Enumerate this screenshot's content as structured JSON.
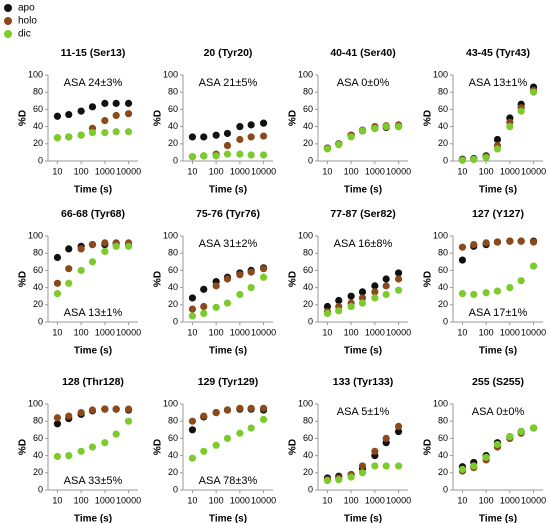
{
  "legend": [
    {
      "name": "apo",
      "color": "#111111"
    },
    {
      "name": "holo",
      "color": "#8b4a1c"
    },
    {
      "name": "dic",
      "color": "#7ccb2c"
    }
  ],
  "chart_data": [
    {
      "type": "scatter",
      "title": "11-15 (Ser13)",
      "annotation": "ASA 24±3%",
      "annotation_position": "top",
      "xlabel": "Time (s)",
      "ylabel": "%D",
      "xscale": "log",
      "x": [
        10,
        30,
        100,
        300,
        1000,
        3000,
        10000
      ],
      "xlim": [
        4,
        25000
      ],
      "xticks": [
        10,
        100,
        1000,
        10000
      ],
      "ylim": [
        0,
        100
      ],
      "yticks": [
        0,
        20,
        40,
        60,
        80,
        100
      ],
      "series": [
        {
          "values": [
            52,
            54,
            58,
            63,
            67,
            67,
            67
          ]
        },
        {
          "values": [
            27,
            28,
            30,
            38,
            47,
            53,
            55
          ]
        },
        {
          "values": [
            27,
            28,
            30,
            33,
            33,
            34,
            34
          ]
        }
      ]
    },
    {
      "type": "scatter",
      "title": "20 (Tyr20)",
      "annotation": "ASA 21±5%",
      "annotation_position": "top",
      "xlabel": "Time (s)",
      "ylabel": "%D",
      "xscale": "log",
      "x": [
        10,
        30,
        100,
        300,
        1000,
        3000,
        10000
      ],
      "xlim": [
        4,
        25000
      ],
      "xticks": [
        10,
        100,
        1000,
        10000
      ],
      "ylim": [
        0,
        100
      ],
      "yticks": [
        0,
        20,
        40,
        60,
        80,
        100
      ],
      "series": [
        {
          "values": [
            28,
            28,
            30,
            32,
            40,
            42,
            44
          ]
        },
        {
          "values": [
            5,
            6,
            8,
            18,
            25,
            28,
            29
          ]
        },
        {
          "values": [
            5,
            6,
            6,
            8,
            8,
            7,
            7
          ]
        }
      ]
    },
    {
      "type": "scatter",
      "title": "40-41 (Ser40)",
      "annotation": "ASA 0±0%",
      "annotation_position": "top",
      "xlabel": "Time (s)",
      "ylabel": "%D",
      "xscale": "log",
      "x": [
        10,
        30,
        100,
        300,
        1000,
        3000,
        10000
      ],
      "xlim": [
        4,
        25000
      ],
      "xticks": [
        10,
        100,
        1000,
        10000
      ],
      "ylim": [
        0,
        100
      ],
      "yticks": [
        0,
        20,
        40,
        60,
        80,
        100
      ],
      "series": [
        {
          "values": [
            15,
            20,
            30,
            35,
            38,
            39,
            40
          ]
        },
        {
          "values": [
            15,
            20,
            30,
            36,
            40,
            41,
            42
          ]
        },
        {
          "values": [
            14,
            19,
            28,
            35,
            38,
            40,
            40
          ]
        }
      ]
    },
    {
      "type": "scatter",
      "title": "43-45 (Tyr43)",
      "annotation": "ASA 13±1%",
      "annotation_position": "top",
      "xlabel": "Time (s)",
      "ylabel": "%D",
      "xscale": "log",
      "x": [
        10,
        30,
        100,
        300,
        1000,
        3000,
        10000
      ],
      "xlim": [
        4,
        25000
      ],
      "xticks": [
        10,
        100,
        1000,
        10000
      ],
      "ylim": [
        0,
        100
      ],
      "yticks": [
        0,
        20,
        40,
        60,
        80,
        100
      ],
      "series": [
        {
          "values": [
            2,
            3,
            6,
            25,
            50,
            66,
            86
          ]
        },
        {
          "values": [
            1,
            2,
            5,
            18,
            45,
            62,
            82
          ]
        },
        {
          "values": [
            1,
            2,
            4,
            14,
            40,
            58,
            80
          ]
        }
      ]
    },
    {
      "type": "scatter",
      "title": "66-68 (Tyr68)",
      "annotation": "ASA 13±1%",
      "annotation_position": "bottom",
      "xlabel": "Time (s)",
      "ylabel": "%D",
      "xscale": "log",
      "x": [
        10,
        30,
        100,
        300,
        1000,
        3000,
        10000
      ],
      "xlim": [
        4,
        25000
      ],
      "xticks": [
        10,
        100,
        1000,
        10000
      ],
      "ylim": [
        0,
        100
      ],
      "yticks": [
        0,
        20,
        40,
        60,
        80,
        100
      ],
      "series": [
        {
          "values": [
            75,
            85,
            88,
            90,
            90,
            91,
            90
          ]
        },
        {
          "values": [
            45,
            62,
            85,
            90,
            92,
            92,
            92
          ]
        },
        {
          "values": [
            33,
            45,
            60,
            70,
            82,
            88,
            88
          ]
        }
      ]
    },
    {
      "type": "scatter",
      "title": "75-76 (Tyr76)",
      "annotation": "ASA 31±2%",
      "annotation_position": "top",
      "xlabel": "Time (s)",
      "ylabel": "%D",
      "xscale": "log",
      "x": [
        10,
        30,
        100,
        300,
        1000,
        3000,
        10000
      ],
      "xlim": [
        4,
        25000
      ],
      "xticks": [
        10,
        100,
        1000,
        10000
      ],
      "ylim": [
        0,
        100
      ],
      "yticks": [
        0,
        20,
        40,
        60,
        80,
        100
      ],
      "series": [
        {
          "values": [
            28,
            38,
            47,
            52,
            57,
            60,
            63
          ]
        },
        {
          "values": [
            15,
            18,
            42,
            50,
            55,
            58,
            62
          ]
        },
        {
          "values": [
            7,
            10,
            17,
            22,
            32,
            40,
            52
          ]
        }
      ]
    },
    {
      "type": "scatter",
      "title": "77-87 (Ser82)",
      "annotation": "ASA 16±8%",
      "annotation_position": "top",
      "xlabel": "Time (s)",
      "ylabel": "%D",
      "xscale": "log",
      "x": [
        10,
        30,
        100,
        300,
        1000,
        3000,
        10000
      ],
      "xlim": [
        4,
        25000
      ],
      "xticks": [
        10,
        100,
        1000,
        10000
      ],
      "ylim": [
        0,
        100
      ],
      "yticks": [
        0,
        20,
        40,
        60,
        80,
        100
      ],
      "series": [
        {
          "values": [
            18,
            25,
            30,
            35,
            42,
            50,
            57
          ]
        },
        {
          "values": [
            12,
            18,
            22,
            28,
            35,
            42,
            50
          ]
        },
        {
          "values": [
            10,
            13,
            18,
            22,
            28,
            32,
            37
          ]
        }
      ]
    },
    {
      "type": "scatter",
      "title": "127 (Y127)",
      "annotation": "ASA 17±1%",
      "annotation_position": "bottom",
      "xlabel": "Time (s)",
      "ylabel": "%D",
      "xscale": "log",
      "x": [
        10,
        30,
        100,
        300,
        1000,
        3000,
        10000
      ],
      "xlim": [
        4,
        25000
      ],
      "xticks": [
        10,
        100,
        1000,
        10000
      ],
      "ylim": [
        0,
        100
      ],
      "yticks": [
        0,
        20,
        40,
        60,
        80,
        100
      ],
      "series": [
        {
          "values": [
            72,
            88,
            90,
            93,
            94,
            94,
            94
          ]
        },
        {
          "values": [
            87,
            90,
            92,
            93,
            94,
            94,
            93
          ]
        },
        {
          "values": [
            33,
            32,
            34,
            36,
            40,
            48,
            65
          ]
        }
      ]
    },
    {
      "type": "scatter",
      "title": "128 (Thr128)",
      "annotation": "ASA 33±5%",
      "annotation_position": "bottom",
      "xlabel": "Time (s)",
      "ylabel": "%D",
      "xscale": "log",
      "x": [
        10,
        30,
        100,
        300,
        1000,
        3000,
        10000
      ],
      "xlim": [
        4,
        25000
      ],
      "xticks": [
        10,
        100,
        1000,
        10000
      ],
      "ylim": [
        0,
        100
      ],
      "yticks": [
        0,
        20,
        40,
        60,
        80,
        100
      ],
      "series": [
        {
          "values": [
            77,
            83,
            88,
            92,
            94,
            94,
            93
          ]
        },
        {
          "values": [
            84,
            86,
            90,
            93,
            94,
            94,
            94
          ]
        },
        {
          "values": [
            39,
            40,
            45,
            50,
            55,
            65,
            80
          ]
        }
      ]
    },
    {
      "type": "scatter",
      "title": "129 (Tyr129)",
      "annotation": "ASA 78±3%",
      "annotation_position": "bottom",
      "xlabel": "Time (s)",
      "ylabel": "%D",
      "xscale": "log",
      "x": [
        10,
        30,
        100,
        300,
        1000,
        3000,
        10000
      ],
      "xlim": [
        4,
        25000
      ],
      "xticks": [
        10,
        100,
        1000,
        10000
      ],
      "ylim": [
        0,
        100
      ],
      "yticks": [
        0,
        20,
        40,
        60,
        80,
        100
      ],
      "series": [
        {
          "values": [
            70,
            85,
            90,
            93,
            94,
            94,
            93
          ]
        },
        {
          "values": [
            80,
            86,
            90,
            93,
            95,
            95,
            95
          ]
        },
        {
          "values": [
            37,
            45,
            52,
            60,
            66,
            72,
            82
          ]
        }
      ]
    },
    {
      "type": "scatter",
      "title": "133 (Tyr133)",
      "annotation": "ASA 5±1%",
      "annotation_position": "top",
      "xlabel": "Time (s)",
      "ylabel": "%D",
      "xscale": "log",
      "x": [
        10,
        30,
        100,
        300,
        1000,
        3000,
        10000
      ],
      "xlim": [
        4,
        25000
      ],
      "xticks": [
        10,
        100,
        1000,
        10000
      ],
      "ylim": [
        0,
        100
      ],
      "yticks": [
        0,
        20,
        40,
        60,
        80,
        100
      ],
      "series": [
        {
          "values": [
            14,
            16,
            18,
            25,
            40,
            55,
            68
          ]
        },
        {
          "values": [
            12,
            14,
            18,
            28,
            45,
            60,
            74
          ]
        },
        {
          "values": [
            11,
            12,
            15,
            20,
            28,
            28,
            28
          ]
        }
      ]
    },
    {
      "type": "scatter",
      "title": "255 (S255)",
      "annotation": "ASA 0±0%",
      "annotation_position": "top",
      "xlabel": "Time (s)",
      "ylabel": "%D",
      "xscale": "log",
      "x": [
        10,
        30,
        100,
        300,
        1000,
        3000,
        10000
      ],
      "xlim": [
        4,
        25000
      ],
      "xticks": [
        10,
        100,
        1000,
        10000
      ],
      "ylim": [
        0,
        100
      ],
      "yticks": [
        0,
        20,
        40,
        60,
        80,
        100
      ],
      "series": [
        {
          "values": [
            27,
            32,
            40,
            55,
            62,
            68,
            72
          ]
        },
        {
          "values": [
            22,
            26,
            35,
            50,
            60,
            66,
            72
          ]
        },
        {
          "values": [
            24,
            28,
            38,
            53,
            62,
            68,
            72
          ]
        }
      ]
    }
  ]
}
